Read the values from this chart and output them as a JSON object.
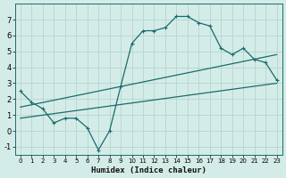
{
  "title": "",
  "xlabel": "Humidex (Indice chaleur)",
  "ylabel": "",
  "xlim": [
    -0.5,
    23.5
  ],
  "ylim": [
    -1.5,
    8.0
  ],
  "yticks": [
    -1,
    0,
    1,
    2,
    3,
    4,
    5,
    6,
    7
  ],
  "xticks": [
    0,
    1,
    2,
    3,
    4,
    5,
    6,
    7,
    8,
    9,
    10,
    11,
    12,
    13,
    14,
    15,
    16,
    17,
    18,
    19,
    20,
    21,
    22,
    23
  ],
  "background_color": "#d4ece8",
  "grid_color": "#b8d8d4",
  "line_color": "#1a6b6b",
  "jagged_x": [
    0,
    1,
    2,
    3,
    4,
    5,
    6,
    7,
    8,
    9,
    10,
    11,
    12,
    13,
    14,
    15,
    16,
    17,
    18,
    19,
    20,
    21,
    22,
    23
  ],
  "jagged_y": [
    2.5,
    1.8,
    1.4,
    0.5,
    0.8,
    0.8,
    0.2,
    -1.2,
    0.0,
    2.8,
    5.5,
    6.3,
    6.3,
    6.5,
    7.2,
    7.2,
    6.8,
    6.6,
    5.2,
    4.8,
    5.2,
    4.5,
    4.3,
    3.2
  ],
  "line2_x": [
    0,
    23
  ],
  "line2_y": [
    1.5,
    4.8
  ],
  "line3_x": [
    0,
    23
  ],
  "line3_y": [
    0.8,
    3.0
  ],
  "marker": "+"
}
